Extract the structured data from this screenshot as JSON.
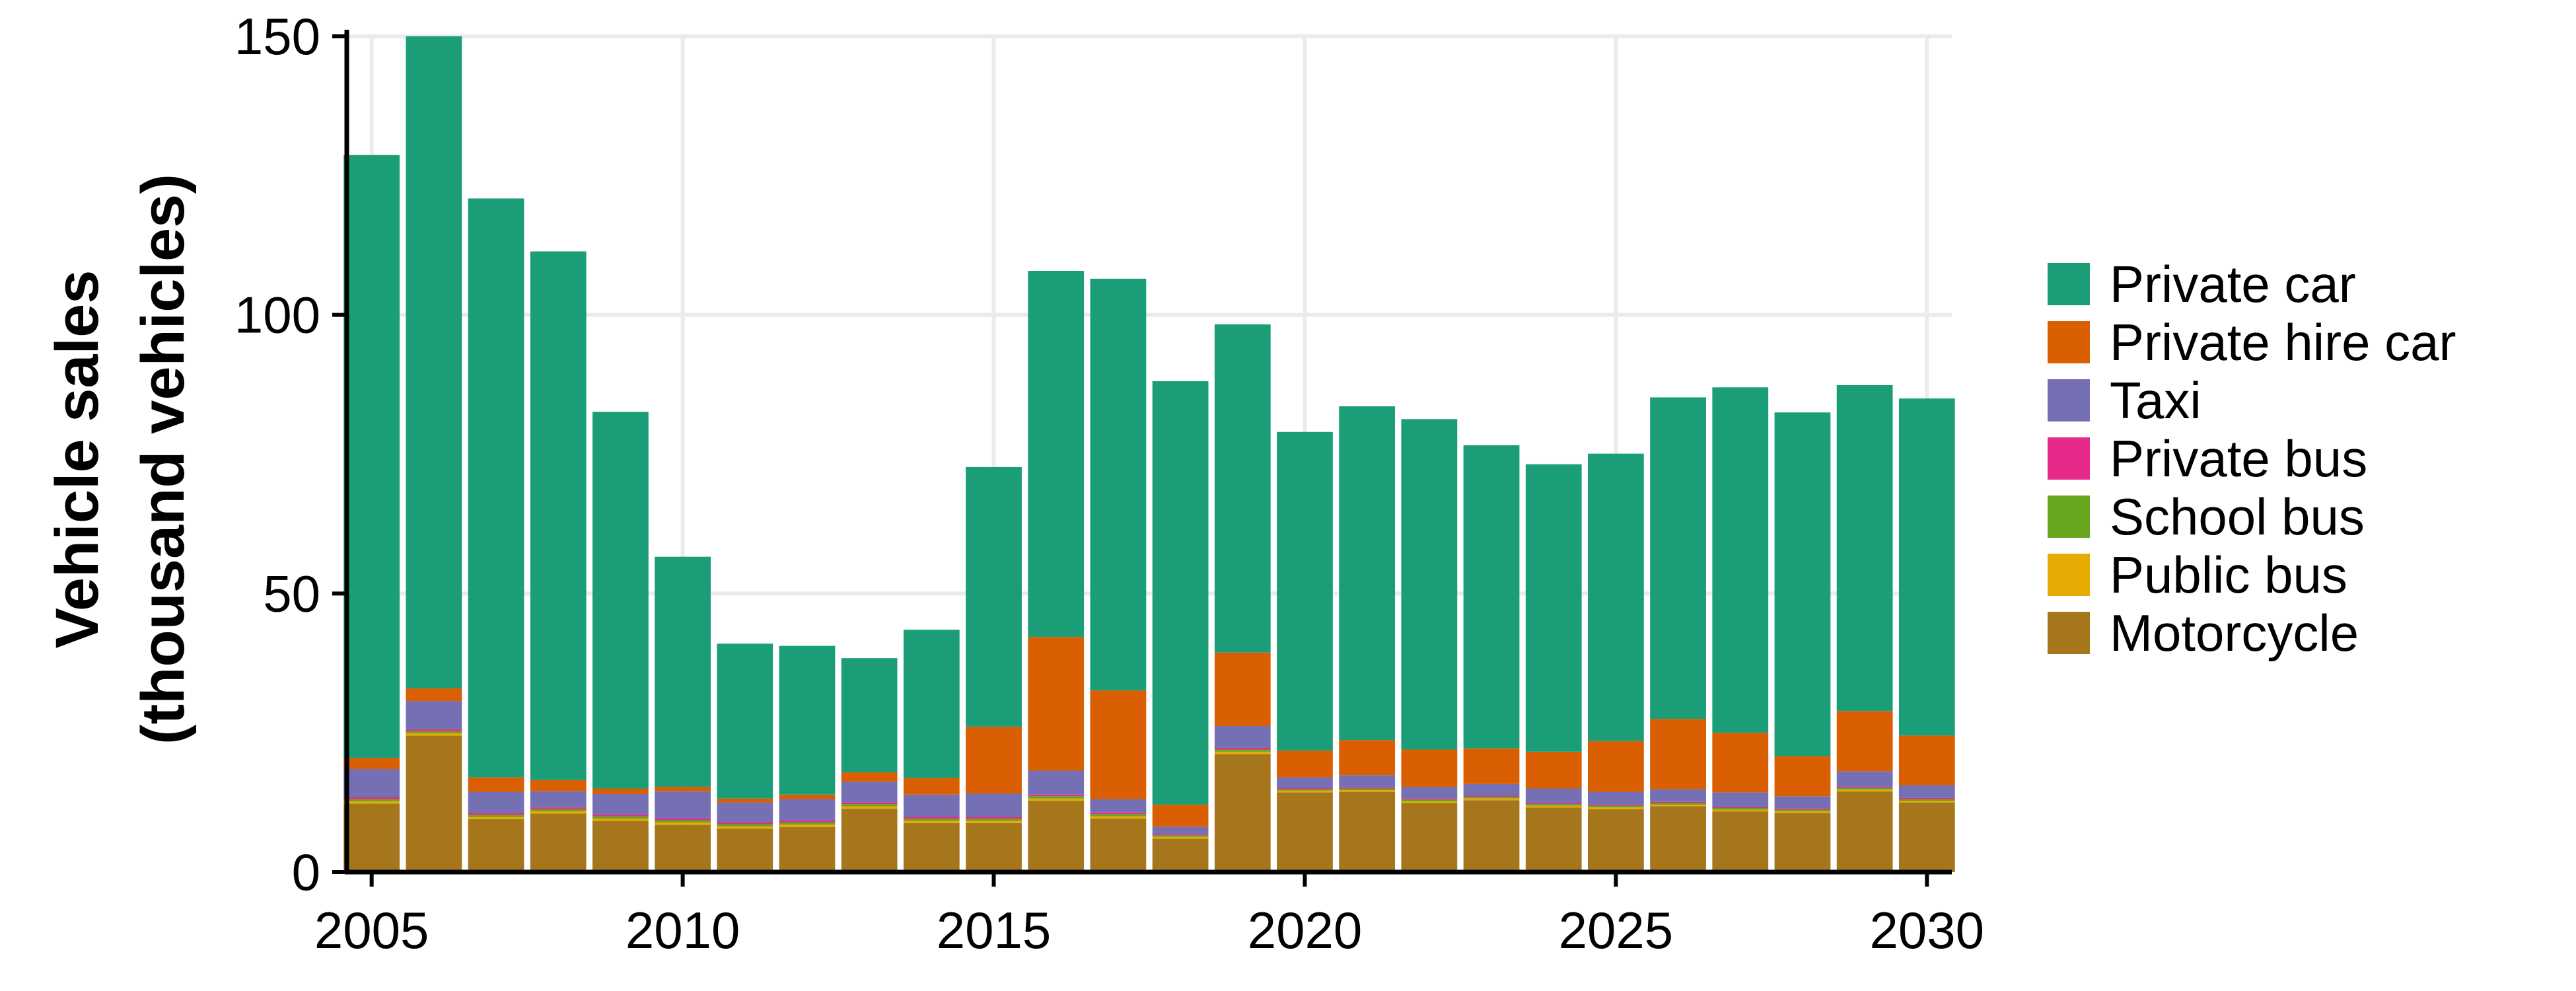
{
  "chart_data": {
    "type": "bar",
    "stacked": true,
    "title": "",
    "xlabel": "",
    "ylabel_lines": [
      "Vehicle sales",
      "(thousand vehicles)"
    ],
    "ylim": [
      0,
      150
    ],
    "xlim": [
      2004.6,
      2030.4
    ],
    "yticks": [
      0,
      50,
      100,
      150
    ],
    "xticks": [
      2005,
      2010,
      2015,
      2020,
      2025,
      2030
    ],
    "grid": true,
    "legend_position": "right",
    "categories": [
      2005,
      2006,
      2007,
      2008,
      2009,
      2010,
      2011,
      2012,
      2013,
      2014,
      2015,
      2016,
      2017,
      2018,
      2019,
      2020,
      2021,
      2022,
      2023,
      2024,
      2025,
      2026,
      2027,
      2028,
      2029,
      2030
    ],
    "series": [
      {
        "name": "Motorcycle",
        "color": "#a6761d",
        "values": [
          12.3,
          24.5,
          9.5,
          10.5,
          9.2,
          8.5,
          7.8,
          8.1,
          11.4,
          8.8,
          8.8,
          12.8,
          9.6,
          6.0,
          21.2,
          14.3,
          14.4,
          12.4,
          12.9,
          11.6,
          11.3,
          11.8,
          10.9,
          10.6,
          14.5,
          12.5
        ]
      },
      {
        "name": "Public bus",
        "color": "#e6ab02",
        "values": [
          0.4,
          0.4,
          0.4,
          0.4,
          0.4,
          0.4,
          0.4,
          0.4,
          0.4,
          0.4,
          0.4,
          0.4,
          0.4,
          0.3,
          0.4,
          0.3,
          0.3,
          0.3,
          0.3,
          0.3,
          0.3,
          0.3,
          0.3,
          0.3,
          0.3,
          0.3
        ]
      },
      {
        "name": "School bus",
        "color": "#66a61e",
        "values": [
          0.4,
          0.4,
          0.4,
          0.4,
          0.4,
          0.4,
          0.4,
          0.4,
          0.4,
          0.4,
          0.4,
          0.4,
          0.4,
          0.3,
          0.4,
          0.3,
          0.3,
          0.3,
          0.3,
          0.3,
          0.3,
          0.3,
          0.3,
          0.3,
          0.3,
          0.3
        ]
      },
      {
        "name": "Private bus",
        "color": "#e7298a",
        "values": [
          0.3,
          0.3,
          0.3,
          0.3,
          0.3,
          0.3,
          0.3,
          0.3,
          0.3,
          0.3,
          0.3,
          0.3,
          0.3,
          0.2,
          0.3,
          0.2,
          0.2,
          0.2,
          0.2,
          0.2,
          0.2,
          0.2,
          0.2,
          0.2,
          0.2,
          0.2
        ]
      },
      {
        "name": "Taxi",
        "color": "#7570b3",
        "values": [
          5.1,
          5.1,
          3.8,
          2.9,
          3.7,
          4.9,
          3.6,
          3.9,
          3.7,
          4.0,
          4.2,
          4.3,
          2.4,
          1.3,
          3.9,
          1.9,
          2.2,
          2.1,
          2.1,
          2.6,
          2.3,
          2.3,
          2.6,
          2.2,
          2.8,
          2.3
        ]
      },
      {
        "name": "Private hire car",
        "color": "#d95f02",
        "values": [
          2.0,
          2.3,
          2.6,
          2.0,
          1.0,
          0.8,
          0.7,
          0.8,
          1.7,
          3.0,
          12.0,
          24.0,
          19.5,
          4.0,
          13.2,
          4.8,
          6.3,
          6.7,
          6.4,
          6.6,
          9.1,
          12.6,
          10.7,
          7.2,
          10.8,
          8.9
        ]
      },
      {
        "name": "Private car",
        "color": "#1b9e77",
        "values": [
          108.2,
          117.0,
          103.9,
          94.9,
          67.6,
          41.3,
          27.8,
          26.7,
          20.5,
          26.6,
          46.6,
          65.7,
          73.9,
          76.0,
          58.9,
          57.2,
          59.9,
          59.3,
          54.4,
          51.6,
          51.6,
          57.7,
          62.0,
          61.7,
          58.5,
          60.5
        ]
      }
    ],
    "legend_order": [
      "Private car",
      "Private hire car",
      "Taxi",
      "Private bus",
      "School bus",
      "Public bus",
      "Motorcycle"
    ]
  }
}
